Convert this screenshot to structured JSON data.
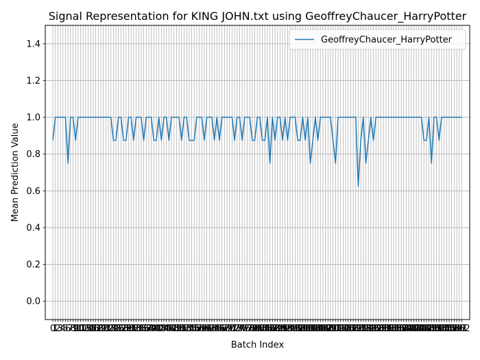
{
  "chart_data": {
    "type": "line",
    "title": "Signal Representation for KING JOHN.txt using GeoffreyChaucer_HarryPotter",
    "xlabel": "Batch Index",
    "ylabel": "Mean Prediction Value",
    "xlim": [
      -3,
      165.15
    ],
    "ylim": [
      -0.1,
      1.5
    ],
    "yticks": [
      0.0,
      0.2,
      0.4,
      0.6,
      0.8,
      1.0,
      1.2,
      1.4
    ],
    "ytick_labels": [
      "0.0",
      "0.2",
      "0.4",
      "0.6",
      "0.8",
      "1.0",
      "1.2",
      "1.4"
    ],
    "xtick_step": 1,
    "xtick_last": 162,
    "xtick_label_last": "162",
    "grid": true,
    "legend_position": "top-right",
    "line_color": "#1f77b4",
    "series": [
      {
        "name": "GeoffreyChaucer_HarryPotter",
        "x_start": 0,
        "values": [
          0.875,
          1.0,
          1.0,
          1.0,
          1.0,
          1.0,
          0.75,
          1.0,
          1.0,
          0.875,
          1.0,
          1.0,
          1.0,
          1.0,
          1.0,
          1.0,
          1.0,
          1.0,
          1.0,
          1.0,
          1.0,
          1.0,
          1.0,
          1.0,
          0.875,
          0.875,
          1.0,
          1.0,
          0.875,
          0.875,
          1.0,
          1.0,
          0.875,
          1.0,
          1.0,
          1.0,
          0.875,
          1.0,
          1.0,
          1.0,
          0.875,
          0.875,
          1.0,
          0.875,
          1.0,
          1.0,
          0.875,
          1.0,
          1.0,
          1.0,
          1.0,
          0.875,
          1.0,
          1.0,
          0.875,
          0.875,
          0.875,
          1.0,
          1.0,
          1.0,
          0.875,
          1.0,
          1.0,
          1.0,
          0.875,
          1.0,
          0.875,
          1.0,
          1.0,
          1.0,
          1.0,
          1.0,
          0.875,
          1.0,
          1.0,
          0.875,
          1.0,
          1.0,
          1.0,
          0.875,
          0.875,
          1.0,
          1.0,
          0.875,
          0.875,
          1.0,
          0.75,
          1.0,
          0.875,
          1.0,
          1.0,
          0.875,
          1.0,
          0.875,
          1.0,
          1.0,
          1.0,
          0.875,
          0.875,
          1.0,
          0.875,
          1.0,
          0.75,
          0.875,
          1.0,
          0.875,
          1.0,
          1.0,
          1.0,
          1.0,
          1.0,
          0.875,
          0.75,
          1.0,
          1.0,
          1.0,
          1.0,
          1.0,
          1.0,
          1.0,
          1.0,
          0.625,
          0.875,
          1.0,
          0.75,
          0.875,
          1.0,
          0.875,
          1.0,
          1.0,
          1.0,
          1.0,
          1.0,
          1.0,
          1.0,
          1.0,
          1.0,
          1.0,
          1.0,
          1.0,
          1.0,
          1.0,
          1.0,
          1.0,
          1.0,
          1.0,
          1.0,
          0.875,
          0.875,
          1.0,
          0.75,
          1.0,
          1.0,
          0.875,
          1.0,
          1.0,
          1.0,
          1.0,
          1.0,
          1.0,
          1.0,
          1.0,
          1.0
        ]
      }
    ]
  }
}
